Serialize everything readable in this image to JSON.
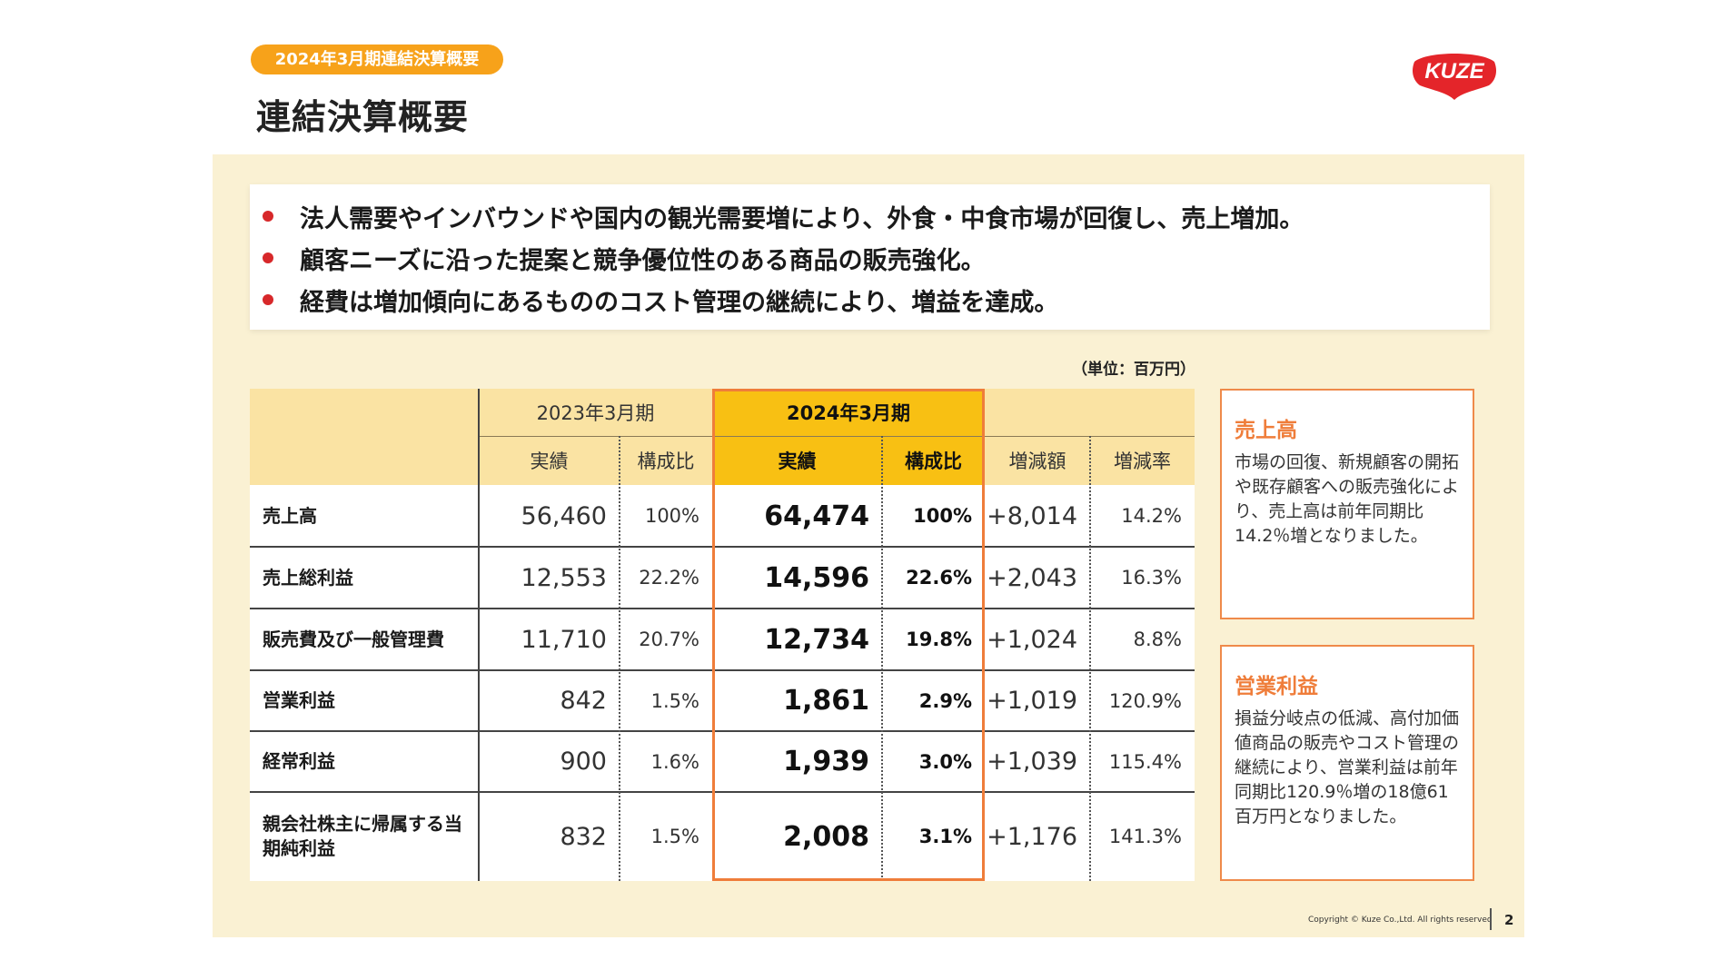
{
  "header": {
    "tag": "2024年3月期連結決算概要",
    "title": "連結決算概要",
    "logo_text": "KUZE"
  },
  "colors": {
    "accent_orange": "#f7a21a",
    "highlight_yellow": "#f8c013",
    "highlight_border": "#ef7d3a",
    "panel_bg": "#faf1d3",
    "bullet_red": "#d7282a",
    "logo_red": "#e4252a"
  },
  "bullets": [
    "法人需要やインバウンドや国内の観光需要増により、外食・中食市場が回復し、売上増加。",
    "顧客ニーズに沿った提案と競争優位性のある商品の販売強化。",
    "経費は増加傾向にあるもののコスト管理の継続により、増益を達成。"
  ],
  "unit_note": "（単位：百万円）",
  "table": {
    "period_prev": "2023年3月期",
    "period_curr": "2024年3月期",
    "col_actual": "実績",
    "col_ratio": "構成比",
    "col_change_amount": "増減額",
    "col_change_rate": "増減率",
    "rows": [
      {
        "label": "売上高",
        "prev": "56,460",
        "prev_ratio": "100%",
        "curr": "64,474",
        "curr_ratio": "100%",
        "diff": "+8,014",
        "rate": "14.2%"
      },
      {
        "label": "売上総利益",
        "prev": "12,553",
        "prev_ratio": "22.2%",
        "curr": "14,596",
        "curr_ratio": "22.6%",
        "diff": "+2,043",
        "rate": "16.3%"
      },
      {
        "label": "販売費及び一般管理費",
        "prev": "11,710",
        "prev_ratio": "20.7%",
        "curr": "12,734",
        "curr_ratio": "19.8%",
        "diff": "+1,024",
        "rate": "8.8%"
      },
      {
        "label": "営業利益",
        "prev": "842",
        "prev_ratio": "1.5%",
        "curr": "1,861",
        "curr_ratio": "2.9%",
        "diff": "+1,019",
        "rate": "120.9%"
      },
      {
        "label": "経常利益",
        "prev": "900",
        "prev_ratio": "1.6%",
        "curr": "1,939",
        "curr_ratio": "3.0%",
        "diff": "+1,039",
        "rate": "115.4%"
      },
      {
        "label": "親会社株主に帰属する当期純利益",
        "prev": "832",
        "prev_ratio": "1.5%",
        "curr": "2,008",
        "curr_ratio": "3.1%",
        "diff": "+1,176",
        "rate": "141.3%"
      }
    ]
  },
  "side_boxes": [
    {
      "title": "売上高",
      "body": "市場の回復、新規顧客の開拓や既存顧客への販売強化により、売上高は前年同期比14.2％増となりました。"
    },
    {
      "title": "営業利益",
      "body": "損益分岐点の低減、高付加価値商品の販売やコスト管理の継続により、営業利益は前年同期比120.9％増の18億61百万円となりました。"
    }
  ],
  "footer": {
    "copyright": "Copyright © Kuze Co.,Ltd. All rights reserved",
    "page_number": "2"
  }
}
